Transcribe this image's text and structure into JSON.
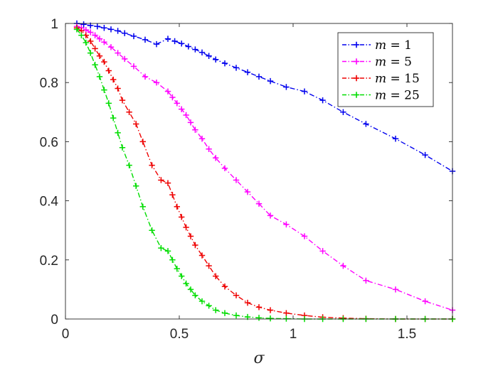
{
  "chart_data": {
    "type": "line",
    "title": "",
    "xlabel": "σ",
    "ylabel": "",
    "xlim": [
      0,
      1.7
    ],
    "ylim": [
      0,
      1
    ],
    "xticks": [
      0,
      0.5,
      1,
      1.5
    ],
    "yticks": [
      0,
      0.2,
      0.4,
      0.6,
      0.8,
      1
    ],
    "xtick_labels": [
      "0",
      "0.5",
      "1",
      "1.5"
    ],
    "ytick_labels": [
      "0",
      "0.2",
      "0.4",
      "0.6",
      "0.8",
      "1"
    ],
    "grid": false,
    "legend_position": "top-right",
    "series": [
      {
        "name": "m = 1",
        "legend_var": "m",
        "legend_rest": " = 1",
        "color": "#0000ee",
        "x": [
          0.05,
          0.08,
          0.11,
          0.14,
          0.17,
          0.2,
          0.23,
          0.26,
          0.3,
          0.35,
          0.4,
          0.45,
          0.48,
          0.51,
          0.54,
          0.57,
          0.6,
          0.63,
          0.66,
          0.7,
          0.75,
          0.8,
          0.85,
          0.9,
          0.97,
          1.05,
          1.13,
          1.22,
          1.32,
          1.45,
          1.58,
          1.7
        ],
        "values": [
          1.0,
          0.997,
          0.993,
          0.99,
          0.985,
          0.98,
          0.975,
          0.967,
          0.957,
          0.945,
          0.93,
          0.948,
          0.94,
          0.932,
          0.922,
          0.912,
          0.902,
          0.89,
          0.878,
          0.865,
          0.85,
          0.835,
          0.82,
          0.805,
          0.785,
          0.77,
          0.74,
          0.7,
          0.66,
          0.61,
          0.555,
          0.5
        ]
      },
      {
        "name": "m = 5",
        "legend_var": "m",
        "legend_rest": " = 5",
        "color": "#ff00ff",
        "x": [
          0.05,
          0.07,
          0.09,
          0.11,
          0.13,
          0.15,
          0.17,
          0.2,
          0.23,
          0.26,
          0.3,
          0.35,
          0.4,
          0.45,
          0.47,
          0.49,
          0.51,
          0.53,
          0.55,
          0.57,
          0.6,
          0.63,
          0.66,
          0.7,
          0.75,
          0.8,
          0.85,
          0.9,
          0.97,
          1.05,
          1.13,
          1.22,
          1.32,
          1.45,
          1.58,
          1.7
        ],
        "values": [
          0.99,
          0.985,
          0.978,
          0.97,
          0.96,
          0.948,
          0.937,
          0.92,
          0.9,
          0.88,
          0.855,
          0.82,
          0.8,
          0.77,
          0.75,
          0.73,
          0.71,
          0.69,
          0.665,
          0.64,
          0.61,
          0.575,
          0.545,
          0.51,
          0.47,
          0.43,
          0.39,
          0.35,
          0.32,
          0.28,
          0.23,
          0.18,
          0.13,
          0.1,
          0.06,
          0.03
        ]
      },
      {
        "name": "m = 15",
        "legend_var": "m",
        "legend_rest": " = 15",
        "color": "#ee0000",
        "x": [
          0.05,
          0.07,
          0.09,
          0.11,
          0.13,
          0.15,
          0.17,
          0.19,
          0.21,
          0.23,
          0.25,
          0.28,
          0.31,
          0.34,
          0.38,
          0.42,
          0.45,
          0.47,
          0.49,
          0.51,
          0.53,
          0.55,
          0.57,
          0.6,
          0.63,
          0.66,
          0.7,
          0.75,
          0.8,
          0.85,
          0.9,
          0.97,
          1.05,
          1.13,
          1.22,
          1.32,
          1.45,
          1.58,
          1.7
        ],
        "values": [
          0.985,
          0.975,
          0.96,
          0.94,
          0.915,
          0.89,
          0.87,
          0.84,
          0.81,
          0.78,
          0.74,
          0.7,
          0.66,
          0.6,
          0.52,
          0.47,
          0.46,
          0.42,
          0.38,
          0.345,
          0.31,
          0.28,
          0.25,
          0.215,
          0.18,
          0.145,
          0.11,
          0.08,
          0.055,
          0.04,
          0.03,
          0.02,
          0.012,
          0.006,
          0.003,
          0.001,
          0.0,
          0.0,
          0.0
        ]
      },
      {
        "name": "m = 25",
        "legend_var": "m",
        "legend_rest": " = 25",
        "color": "#00dd00",
        "x": [
          0.05,
          0.07,
          0.09,
          0.11,
          0.13,
          0.15,
          0.17,
          0.19,
          0.21,
          0.23,
          0.25,
          0.28,
          0.31,
          0.34,
          0.38,
          0.42,
          0.45,
          0.47,
          0.49,
          0.51,
          0.53,
          0.55,
          0.57,
          0.6,
          0.63,
          0.66,
          0.7,
          0.75,
          0.8,
          0.85,
          0.9,
          0.97,
          1.05,
          1.13,
          1.22,
          1.32,
          1.45,
          1.58,
          1.7
        ],
        "values": [
          0.98,
          0.96,
          0.935,
          0.9,
          0.86,
          0.82,
          0.775,
          0.73,
          0.68,
          0.63,
          0.58,
          0.52,
          0.45,
          0.38,
          0.3,
          0.24,
          0.23,
          0.2,
          0.17,
          0.145,
          0.12,
          0.1,
          0.08,
          0.06,
          0.045,
          0.03,
          0.02,
          0.012,
          0.007,
          0.004,
          0.002,
          0.001,
          0.0,
          0.0,
          0.0,
          0.0,
          0.0,
          0.0,
          0.0
        ]
      }
    ]
  }
}
